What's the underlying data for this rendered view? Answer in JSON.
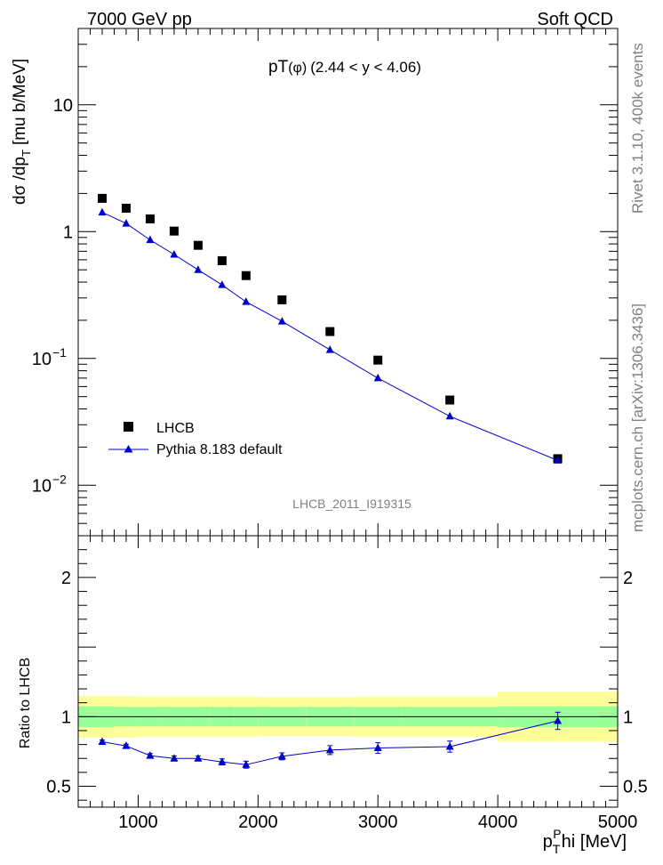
{
  "header": {
    "left": "7000 GeV pp",
    "right": "Soft QCD"
  },
  "side_labels": {
    "rivet": "Rivet 3.1.10,  400k events",
    "mcplots": "mcplots.cern.ch [arXiv:1306.3436]"
  },
  "chart_data": [
    {
      "type": "scatter",
      "title_main": "pT",
      "title_sub": "(φ)",
      "title_range": "(2.44 < y < 4.06)",
      "ylabel": "dσ /dp",
      "ylabel_sub": "T",
      "ylabel_unit": "[mu b/MeV]",
      "yscale": "log",
      "ylim": [
        0.004,
        40
      ],
      "xlim": [
        500,
        5000
      ],
      "yticks": [
        {
          "value": 0.01,
          "base": "10",
          "exp": "−2"
        },
        {
          "value": 0.1,
          "base": "10",
          "exp": "−1"
        },
        {
          "value": 1,
          "base": "1",
          "exp": ""
        },
        {
          "value": 10,
          "base": "10",
          "exp": ""
        }
      ],
      "watermark": "LHCB_2011_I919315",
      "legend_position": "bottom-left",
      "series": [
        {
          "name": "LHCB",
          "marker": "square",
          "color": "#000000",
          "x": [
            700,
            900,
            1100,
            1300,
            1500,
            1700,
            1900,
            2200,
            2600,
            3000,
            3600,
            4500
          ],
          "y": [
            1.83,
            1.53,
            1.26,
            1.01,
            0.78,
            0.59,
            0.45,
            0.29,
            0.163,
            0.097,
            0.047,
            0.0162
          ]
        },
        {
          "name": "Pythia 8.183 default",
          "marker": "triangle",
          "color": "#0000cc",
          "x": [
            700,
            900,
            1100,
            1300,
            1500,
            1700,
            1900,
            2200,
            2600,
            3000,
            3600,
            4500
          ],
          "y": [
            1.42,
            1.16,
            0.86,
            0.66,
            0.5,
            0.38,
            0.28,
            0.196,
            0.117,
            0.07,
            0.035,
            0.0157
          ]
        }
      ]
    },
    {
      "type": "line",
      "ylabel": "Ratio to LHCB",
      "xlabel_main": "p",
      "xlabel_sub": "T",
      "xlabel_sup": "P",
      "xlabel_rest": "hi [MeV]",
      "xlim": [
        500,
        5000
      ],
      "ylim": [
        0.35,
        2.3
      ],
      "xticks": [
        1000,
        2000,
        3000,
        4000,
        5000
      ],
      "yticks": [
        0.5,
        1,
        2
      ],
      "ytick_labels": [
        "0.5",
        "1",
        "2"
      ],
      "bands": {
        "bins": [
          [
            500,
            800
          ],
          [
            800,
            1000
          ],
          [
            1000,
            1200
          ],
          [
            1200,
            1400
          ],
          [
            1400,
            1600
          ],
          [
            1600,
            1800
          ],
          [
            1800,
            2000
          ],
          [
            2000,
            2400
          ],
          [
            2400,
            2800
          ],
          [
            2800,
            3200
          ],
          [
            3200,
            4000
          ],
          [
            4000,
            5000
          ]
        ],
        "stat_sys_yellow_half": [
          0.15,
          0.15,
          0.145,
          0.145,
          0.145,
          0.145,
          0.145,
          0.14,
          0.14,
          0.145,
          0.145,
          0.18
        ],
        "stat_green_half": [
          0.075,
          0.07,
          0.07,
          0.07,
          0.07,
          0.07,
          0.07,
          0.07,
          0.07,
          0.07,
          0.07,
          0.075
        ],
        "yellow_color": "#ffff99",
        "green_color": "#99ff99"
      },
      "series": [
        {
          "name": "Pythia 8.183 default",
          "color": "#0000cc",
          "x": [
            700,
            900,
            1100,
            1300,
            1500,
            1700,
            1900,
            2200,
            2600,
            3000,
            3600,
            4500
          ],
          "y": [
            0.82,
            0.79,
            0.72,
            0.7,
            0.7,
            0.675,
            0.655,
            0.715,
            0.76,
            0.775,
            0.785,
            0.97
          ],
          "err": [
            0.012,
            0.012,
            0.015,
            0.018,
            0.018,
            0.022,
            0.025,
            0.025,
            0.032,
            0.038,
            0.04,
            0.062
          ]
        }
      ]
    }
  ]
}
